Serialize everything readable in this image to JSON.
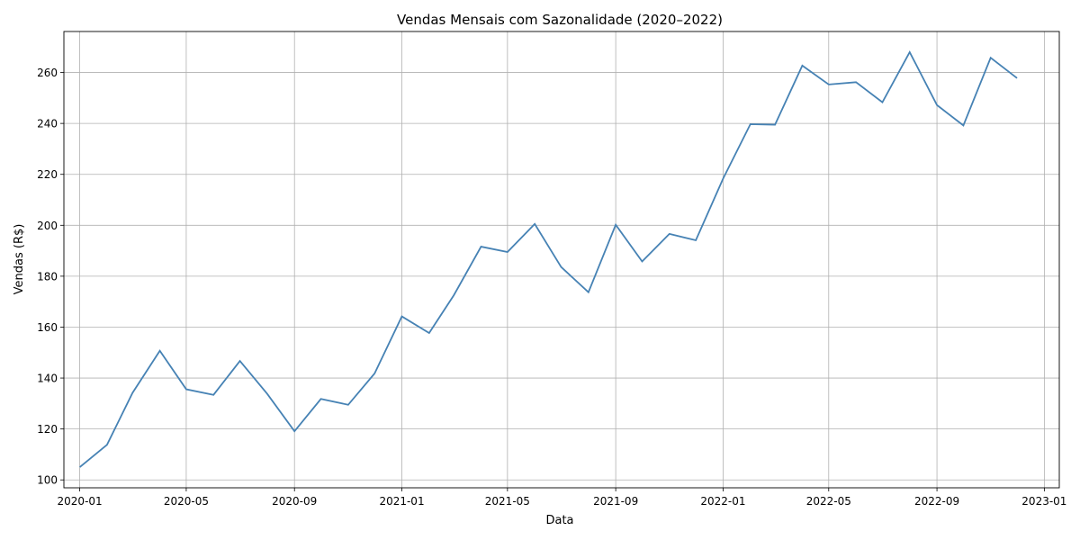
{
  "chart_data": {
    "type": "line",
    "title": "Vendas Mensais com Sazonalidade (2020–2022)",
    "xlabel": "Data",
    "ylabel": "Vendas (R$)",
    "grid": true,
    "line_color": "#4682b4",
    "x": [
      "2020-01",
      "2020-02",
      "2020-03",
      "2020-04",
      "2020-05",
      "2020-06",
      "2020-07",
      "2020-08",
      "2020-09",
      "2020-10",
      "2020-11",
      "2020-12",
      "2021-01",
      "2021-02",
      "2021-03",
      "2021-04",
      "2021-05",
      "2021-06",
      "2021-07",
      "2021-08",
      "2021-09",
      "2021-10",
      "2021-11",
      "2021-12",
      "2022-01",
      "2022-02",
      "2022-03",
      "2022-04",
      "2022-05",
      "2022-06",
      "2022-07",
      "2022-08",
      "2022-09",
      "2022-10",
      "2022-11",
      "2022-12"
    ],
    "series": [
      {
        "values": [
          105,
          113.8,
          134.2,
          150.7,
          135.6,
          133.4,
          146.7,
          133.8,
          119.1,
          131.8,
          129.5,
          141.8,
          164.2,
          157.7,
          172.5,
          191.6,
          189.5,
          200.5,
          183.6,
          173.7,
          200.2,
          185.8,
          196.6,
          194.1,
          218.3,
          239.7,
          239.5,
          262.7,
          255.3,
          256.2,
          248.3,
          268.0,
          247.2,
          239.2,
          265.8,
          257.8
        ]
      }
    ],
    "xticks": [
      "2020-01",
      "2020-05",
      "2020-09",
      "2021-01",
      "2021-05",
      "2021-09",
      "2022-01",
      "2022-05",
      "2022-09",
      "2023-01"
    ],
    "yticks": [
      100,
      120,
      140,
      160,
      180,
      200,
      220,
      240,
      260
    ],
    "xlim": [
      "2019-12-14",
      "2023-01-18"
    ],
    "ylim": [
      96.9,
      276.1
    ]
  }
}
